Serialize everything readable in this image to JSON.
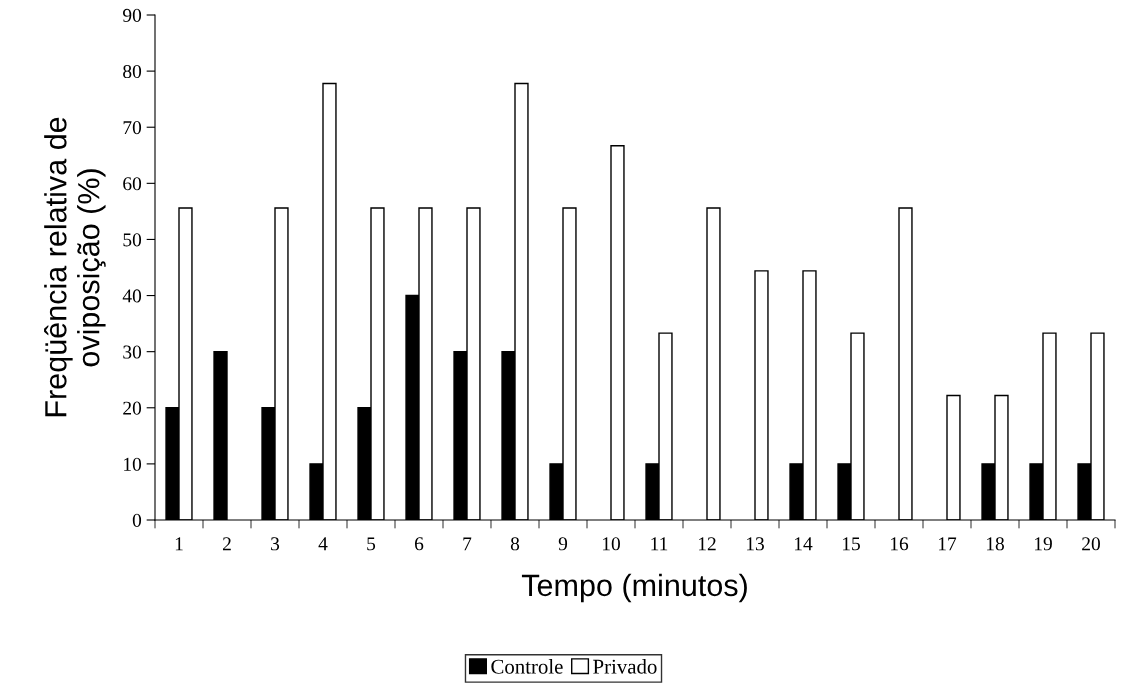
{
  "chart_data": {
    "type": "bar",
    "xlabel": "Tempo (minutos)",
    "ylabel": "Freqüência relativa de\noviposição (%)",
    "categories": [
      "1",
      "2",
      "3",
      "4",
      "5",
      "6",
      "7",
      "8",
      "9",
      "10",
      "11",
      "12",
      "13",
      "14",
      "15",
      "16",
      "17",
      "18",
      "19",
      "20"
    ],
    "series": [
      {
        "name": "Controle",
        "color": "#000000",
        "values": [
          20,
          30,
          20,
          10,
          20,
          40,
          30,
          30,
          10,
          0,
          10,
          0,
          0,
          10,
          10,
          0,
          0,
          10,
          10,
          10
        ]
      },
      {
        "name": "Privado",
        "color": "#ffffff",
        "values": [
          55.6,
          0,
          55.6,
          77.8,
          55.6,
          55.6,
          55.6,
          77.8,
          55.6,
          66.7,
          33.3,
          55.6,
          44.4,
          44.4,
          33.3,
          55.6,
          22.2,
          22.2,
          33.3,
          33.3
        ]
      }
    ],
    "ylim": [
      0,
      90
    ],
    "yticks": [
      0,
      10,
      20,
      30,
      40,
      50,
      60,
      70,
      80,
      90
    ],
    "grid": false,
    "legend": "bottom"
  }
}
